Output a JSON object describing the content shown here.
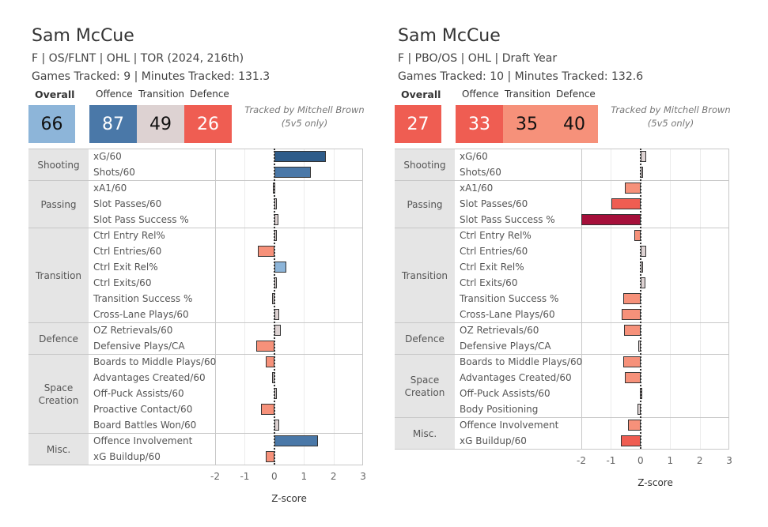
{
  "colors": {
    "dark_blue": "#2e5c8a",
    "mid_blue": "#4a78a8",
    "light_blue": "#8db5d9",
    "neutral": "#ddd2d2",
    "light_red": "#f6917a",
    "red": "#ef5d52",
    "dark_red": "#a50f3a"
  },
  "panels": [
    {
      "name": "Sam McCue",
      "line1": "F | OS/FLNT | OHL | TOR (2024, 216th)",
      "line2": "Games Tracked: 9 | Minutes Tracked: 131.3",
      "overall_label": "Overall",
      "offence_label": "Offence",
      "transition_label": "Transition",
      "defence_label": "Defence",
      "overall": "66",
      "offence": "87",
      "transition": "49",
      "defence": "26",
      "tracked_by": "Tracked by Mitchell Brown",
      "tracked_note": "(5v5 only)",
      "score_colors": {
        "overall": "#8db5d9",
        "offence": "#4a78a8",
        "transition": "#ddd2d2",
        "defence": "#ef5d52"
      },
      "score_text_colors": {
        "overall": "#111",
        "offence": "#fff",
        "transition": "#111",
        "defence": "#fff"
      }
    },
    {
      "name": "Sam McCue",
      "line1": "F | PBO/OS | OHL | Draft Year",
      "line2": "Games Tracked: 10 | Minutes Tracked: 132.6",
      "overall_label": "Overall",
      "offence_label": "Offence",
      "transition_label": "Transition",
      "defence_label": "Defence",
      "overall": "27",
      "offence": "33",
      "transition": "35",
      "defence": "40",
      "tracked_by": "Tracked by Mitchell Brown",
      "tracked_note": "(5v5 only)",
      "score_colors": {
        "overall": "#ef5d52",
        "offence": "#ef5d52",
        "transition": "#f6917a",
        "defence": "#f6917a"
      },
      "score_text_colors": {
        "overall": "#fff",
        "offence": "#fff",
        "transition": "#111",
        "defence": "#111"
      }
    }
  ],
  "chart_data": [
    {
      "type": "bar",
      "orientation": "horizontal",
      "title": "Sam McCue — F | OS/FLNT | OHL | TOR (2024, 216th)",
      "xlabel": "Z-score",
      "xlim": [
        -2,
        3
      ],
      "xticks": [
        "-2",
        "-1",
        "0",
        "1",
        "2",
        "3"
      ],
      "groups": [
        {
          "category": "Shooting",
          "metrics": [
            {
              "label": "xG/60",
              "value": 1.75,
              "color": "#2e5c8a"
            },
            {
              "label": "Shots/60",
              "value": 1.23,
              "color": "#4a78a8"
            }
          ]
        },
        {
          "category": "Passing",
          "metrics": [
            {
              "label": "xA1/60",
              "value": -0.04,
              "color": "#ddd2d2"
            },
            {
              "label": "Slot Passes/60",
              "value": 0.08,
              "color": "#ddd2d2"
            },
            {
              "label": "Slot Pass Success %",
              "value": 0.15,
              "color": "#ddd2d2"
            }
          ]
        },
        {
          "category": "Transition",
          "metrics": [
            {
              "label": "Ctrl Entry Rel%",
              "value": 0.02,
              "color": "#ddd2d2"
            },
            {
              "label": "Ctrl Entries/60",
              "value": -0.57,
              "color": "#f6917a"
            },
            {
              "label": "Ctrl Exit Rel%",
              "value": 0.41,
              "color": "#8db5d9"
            },
            {
              "label": "Ctrl Exits/60",
              "value": 0.02,
              "color": "#ddd2d2"
            },
            {
              "label": "Transition Success %",
              "value": -0.07,
              "color": "#ddd2d2"
            },
            {
              "label": "Cross-Lane Plays/60",
              "value": 0.17,
              "color": "#ddd2d2"
            }
          ]
        },
        {
          "category": "Defence",
          "metrics": [
            {
              "label": "OZ Retrievals/60",
              "value": 0.23,
              "color": "#ddd2d2"
            },
            {
              "label": "Defensive Plays/CA",
              "value": -0.6,
              "color": "#f6917a"
            }
          ]
        },
        {
          "category": "Space Creation",
          "metrics": [
            {
              "label": "Boards to Middle Plays/60",
              "value": -0.3,
              "color": "#f6917a"
            },
            {
              "label": "Advantages Created/60",
              "value": -0.07,
              "color": "#ddd2d2"
            },
            {
              "label": "Off-Puck Assists/60",
              "value": 0.02,
              "color": "#ddd2d2"
            },
            {
              "label": "Proactive Contact/60",
              "value": -0.44,
              "color": "#f6917a"
            },
            {
              "label": "Board Battles Won/60",
              "value": 0.17,
              "color": "#ddd2d2"
            }
          ]
        },
        {
          "category": "Misc.",
          "metrics": [
            {
              "label": "Offence Involvement",
              "value": 1.48,
              "color": "#4a78a8"
            },
            {
              "label": "xG Buildup/60",
              "value": -0.3,
              "color": "#f6917a"
            }
          ]
        }
      ]
    },
    {
      "type": "bar",
      "orientation": "horizontal",
      "title": "Sam McCue — F | PBO/OS | OHL | Draft Year",
      "xlabel": "Z-score",
      "xlim": [
        -2,
        3
      ],
      "xticks": [
        "-2",
        "-1",
        "0",
        "1",
        "2",
        "3"
      ],
      "groups": [
        {
          "category": "Shooting",
          "metrics": [
            {
              "label": "xG/60",
              "value": 0.2,
              "color": "#ddd2d2"
            },
            {
              "label": "Shots/60",
              "value": 0.02,
              "color": "#ddd2d2"
            }
          ]
        },
        {
          "category": "Passing",
          "metrics": [
            {
              "label": "xA1/60",
              "value": -0.53,
              "color": "#f6917a"
            },
            {
              "label": "Slot Passes/60",
              "value": -0.98,
              "color": "#ef5d52"
            },
            {
              "label": "Slot Pass Success %",
              "value": -2.0,
              "color": "#a50f3a"
            }
          ]
        },
        {
          "category": "Transition",
          "metrics": [
            {
              "label": "Ctrl Entry Rel%",
              "value": -0.22,
              "color": "#f6917a"
            },
            {
              "label": "Ctrl Entries/60",
              "value": 0.2,
              "color": "#ddd2d2"
            },
            {
              "label": "Ctrl Exit Rel%",
              "value": 0.07,
              "color": "#ddd2d2"
            },
            {
              "label": "Ctrl Exits/60",
              "value": 0.17,
              "color": "#ddd2d2"
            },
            {
              "label": "Transition Success %",
              "value": -0.58,
              "color": "#f6917a"
            },
            {
              "label": "Cross-Lane Plays/60",
              "value": -0.64,
              "color": "#f6917a"
            }
          ]
        },
        {
          "category": "Defence",
          "metrics": [
            {
              "label": "OZ Retrievals/60",
              "value": -0.56,
              "color": "#f6917a"
            },
            {
              "label": "Defensive Plays/CA",
              "value": -0.07,
              "color": "#ddd2d2"
            }
          ]
        },
        {
          "category": "Space Creation",
          "metrics": [
            {
              "label": "Boards to Middle Plays/60",
              "value": -0.58,
              "color": "#f6917a"
            },
            {
              "label": "Advantages Created/60",
              "value": -0.53,
              "color": "#f6917a"
            },
            {
              "label": "Off-Puck Assists/60",
              "value": -0.03,
              "color": "#ddd2d2"
            },
            {
              "label": "Body Positioning",
              "value": -0.1,
              "color": "#ddd2d2"
            }
          ]
        },
        {
          "category": "Misc.",
          "metrics": [
            {
              "label": "Offence Involvement",
              "value": -0.42,
              "color": "#f6917a"
            },
            {
              "label": "xG Buildup/60",
              "value": -0.67,
              "color": "#ef5d52"
            }
          ]
        }
      ]
    }
  ]
}
